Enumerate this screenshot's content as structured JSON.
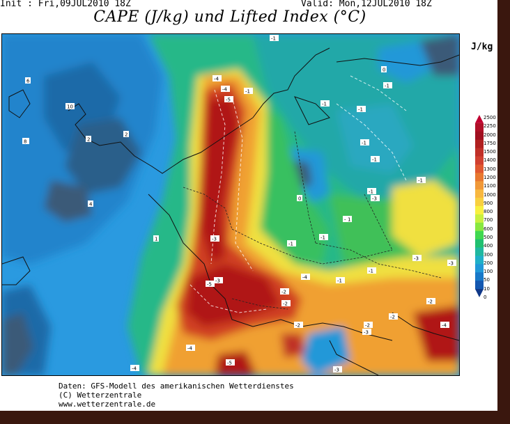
{
  "header": {
    "init": "Init : Fri,09JUL2010 18Z",
    "valid": "Valid: Mon,12JUL2010 18Z",
    "title": "CAPE (J/kg) und Lifted Index (°C)"
  },
  "legend": {
    "unit": "J/kg",
    "ticks": [
      "2500",
      "2250",
      "2000",
      "1750",
      "1500",
      "1400",
      "1300",
      "1200",
      "1100",
      "1000",
      "900",
      "800",
      "700",
      "600",
      "500",
      "400",
      "300",
      "200",
      "100",
      "50",
      "10",
      "0"
    ],
    "colors": [
      "#c00030",
      "#b01028",
      "#a01020",
      "#b02020",
      "#c03028",
      "#d04030",
      "#e05830",
      "#e87830",
      "#f09838",
      "#f8b840",
      "#f8d040",
      "#f8f040",
      "#c8f040",
      "#88e840",
      "#40d850",
      "#20c070",
      "#20b8a0",
      "#20b0c8",
      "#2098d8",
      "#1878c8",
      "#1458b0",
      "#103888"
    ]
  },
  "map": {
    "li_labels": [
      "-1",
      "-1",
      "-1",
      "-1",
      "-1",
      "-1",
      "-1",
      "-1",
      "-1",
      "-1",
      "-1",
      "-1",
      "-1",
      "-1",
      "-2",
      "-2",
      "-2",
      "-2",
      "-2",
      "-2",
      "-3",
      "-3",
      "-3",
      "-3",
      "-3",
      "-3",
      "-3",
      "-4",
      "-4",
      "-4",
      "-4",
      "-4",
      "-4",
      "-5",
      "-5",
      "-5",
      "0",
      "0",
      "1",
      "1",
      "2",
      "2",
      "4",
      "6",
      "6",
      "8",
      "10"
    ],
    "colors": {
      "ocean": "#2a9ae0",
      "deep": "#1e6aa8",
      "dark": "#3a5a78",
      "land": "#28b888",
      "green": "#38c060",
      "yellow": "#f0e040",
      "orange": "#f0a030",
      "red": "#d04020",
      "crimson": "#b01818"
    }
  },
  "footer": {
    "line1": "Daten: GFS-Modell des amerikanischen Wetterdienstes",
    "line2": "(C) Wetterzentrale",
    "line3": "www.wetterzentrale.de"
  }
}
